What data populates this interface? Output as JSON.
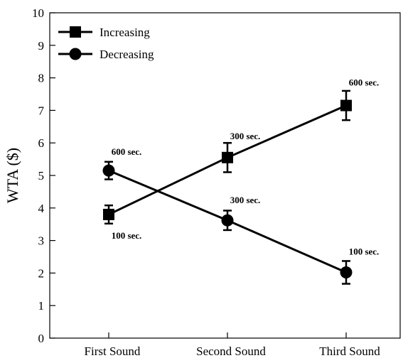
{
  "chart_data": {
    "type": "line",
    "title": "",
    "xlabel": "",
    "ylabel": "WTA ($)",
    "categories": [
      "First Sound",
      "Second Sound",
      "Third Sound"
    ],
    "ylim": [
      0,
      10
    ],
    "yticks": [
      "0",
      "1",
      "2",
      "3",
      "4",
      "5",
      "6",
      "7",
      "8",
      "9",
      "10"
    ],
    "grid": false,
    "legend_position": "top-left",
    "series": [
      {
        "name": "Increasing",
        "marker": "square",
        "values": [
          3.8,
          5.55,
          7.15
        ],
        "errors": [
          0.28,
          0.45,
          0.45
        ],
        "annotations": [
          "100 sec.",
          "300 sec.",
          "600 sec."
        ]
      },
      {
        "name": "Decreasing",
        "marker": "circle",
        "values": [
          5.15,
          3.62,
          2.02
        ],
        "errors": [
          0.27,
          0.3,
          0.35
        ],
        "annotations": [
          "600 sec.",
          "300 sec.",
          "100 sec."
        ]
      }
    ]
  }
}
